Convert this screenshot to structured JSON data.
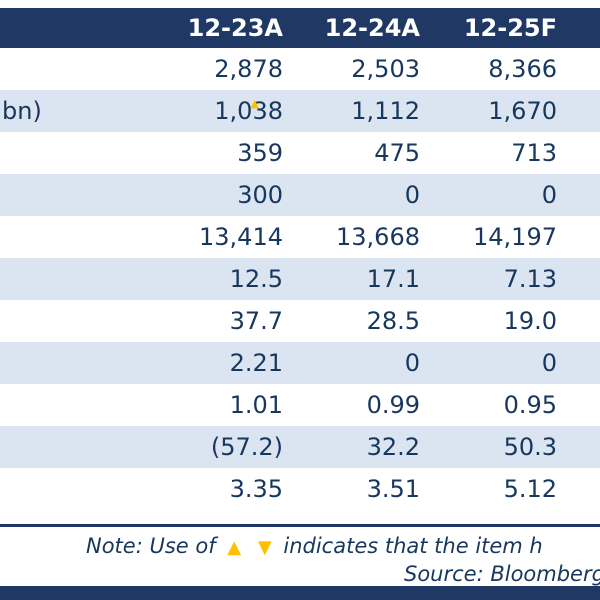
{
  "header": {
    "columns": [
      "12-23A",
      "12-24A",
      "12-25F"
    ]
  },
  "rows": [
    {
      "label": "",
      "values": [
        "2,878",
        "2,503",
        "8,366"
      ]
    },
    {
      "label": "bn)",
      "values": [
        "1,038",
        "1,112",
        "1,670"
      ],
      "marker": "▲"
    },
    {
      "label": "",
      "values": [
        "359",
        "475",
        "713"
      ]
    },
    {
      "label": "",
      "values": [
        "300",
        "0",
        "0"
      ]
    },
    {
      "label": "",
      "values": [
        "13,414",
        "13,668",
        "14,197"
      ]
    },
    {
      "label": "",
      "values": [
        "12.5",
        "17.1",
        "7.13"
      ]
    },
    {
      "label": "",
      "values": [
        "37.7",
        "28.5",
        "19.0"
      ]
    },
    {
      "label": "",
      "values": [
        "2.21",
        "0",
        "0"
      ]
    },
    {
      "label": "",
      "values": [
        "1.01",
        "0.99",
        "0.95"
      ]
    },
    {
      "label": "",
      "values": [
        "(57.2)",
        "32.2",
        "50.3"
      ]
    },
    {
      "label": "",
      "values": [
        "3.35",
        "3.51",
        "5.12"
      ]
    }
  ],
  "footer": {
    "note_prefix": "Note: Use of",
    "up_triangle": "▲",
    "down_triangle": "▼",
    "note_suffix": "indicates that the item h",
    "source": "Source: Bloomberg"
  },
  "colors": {
    "navy": "#1F3864",
    "row_alt": "#DBE5F1",
    "accent_gold": "#FFC000",
    "text": "#17375D"
  }
}
